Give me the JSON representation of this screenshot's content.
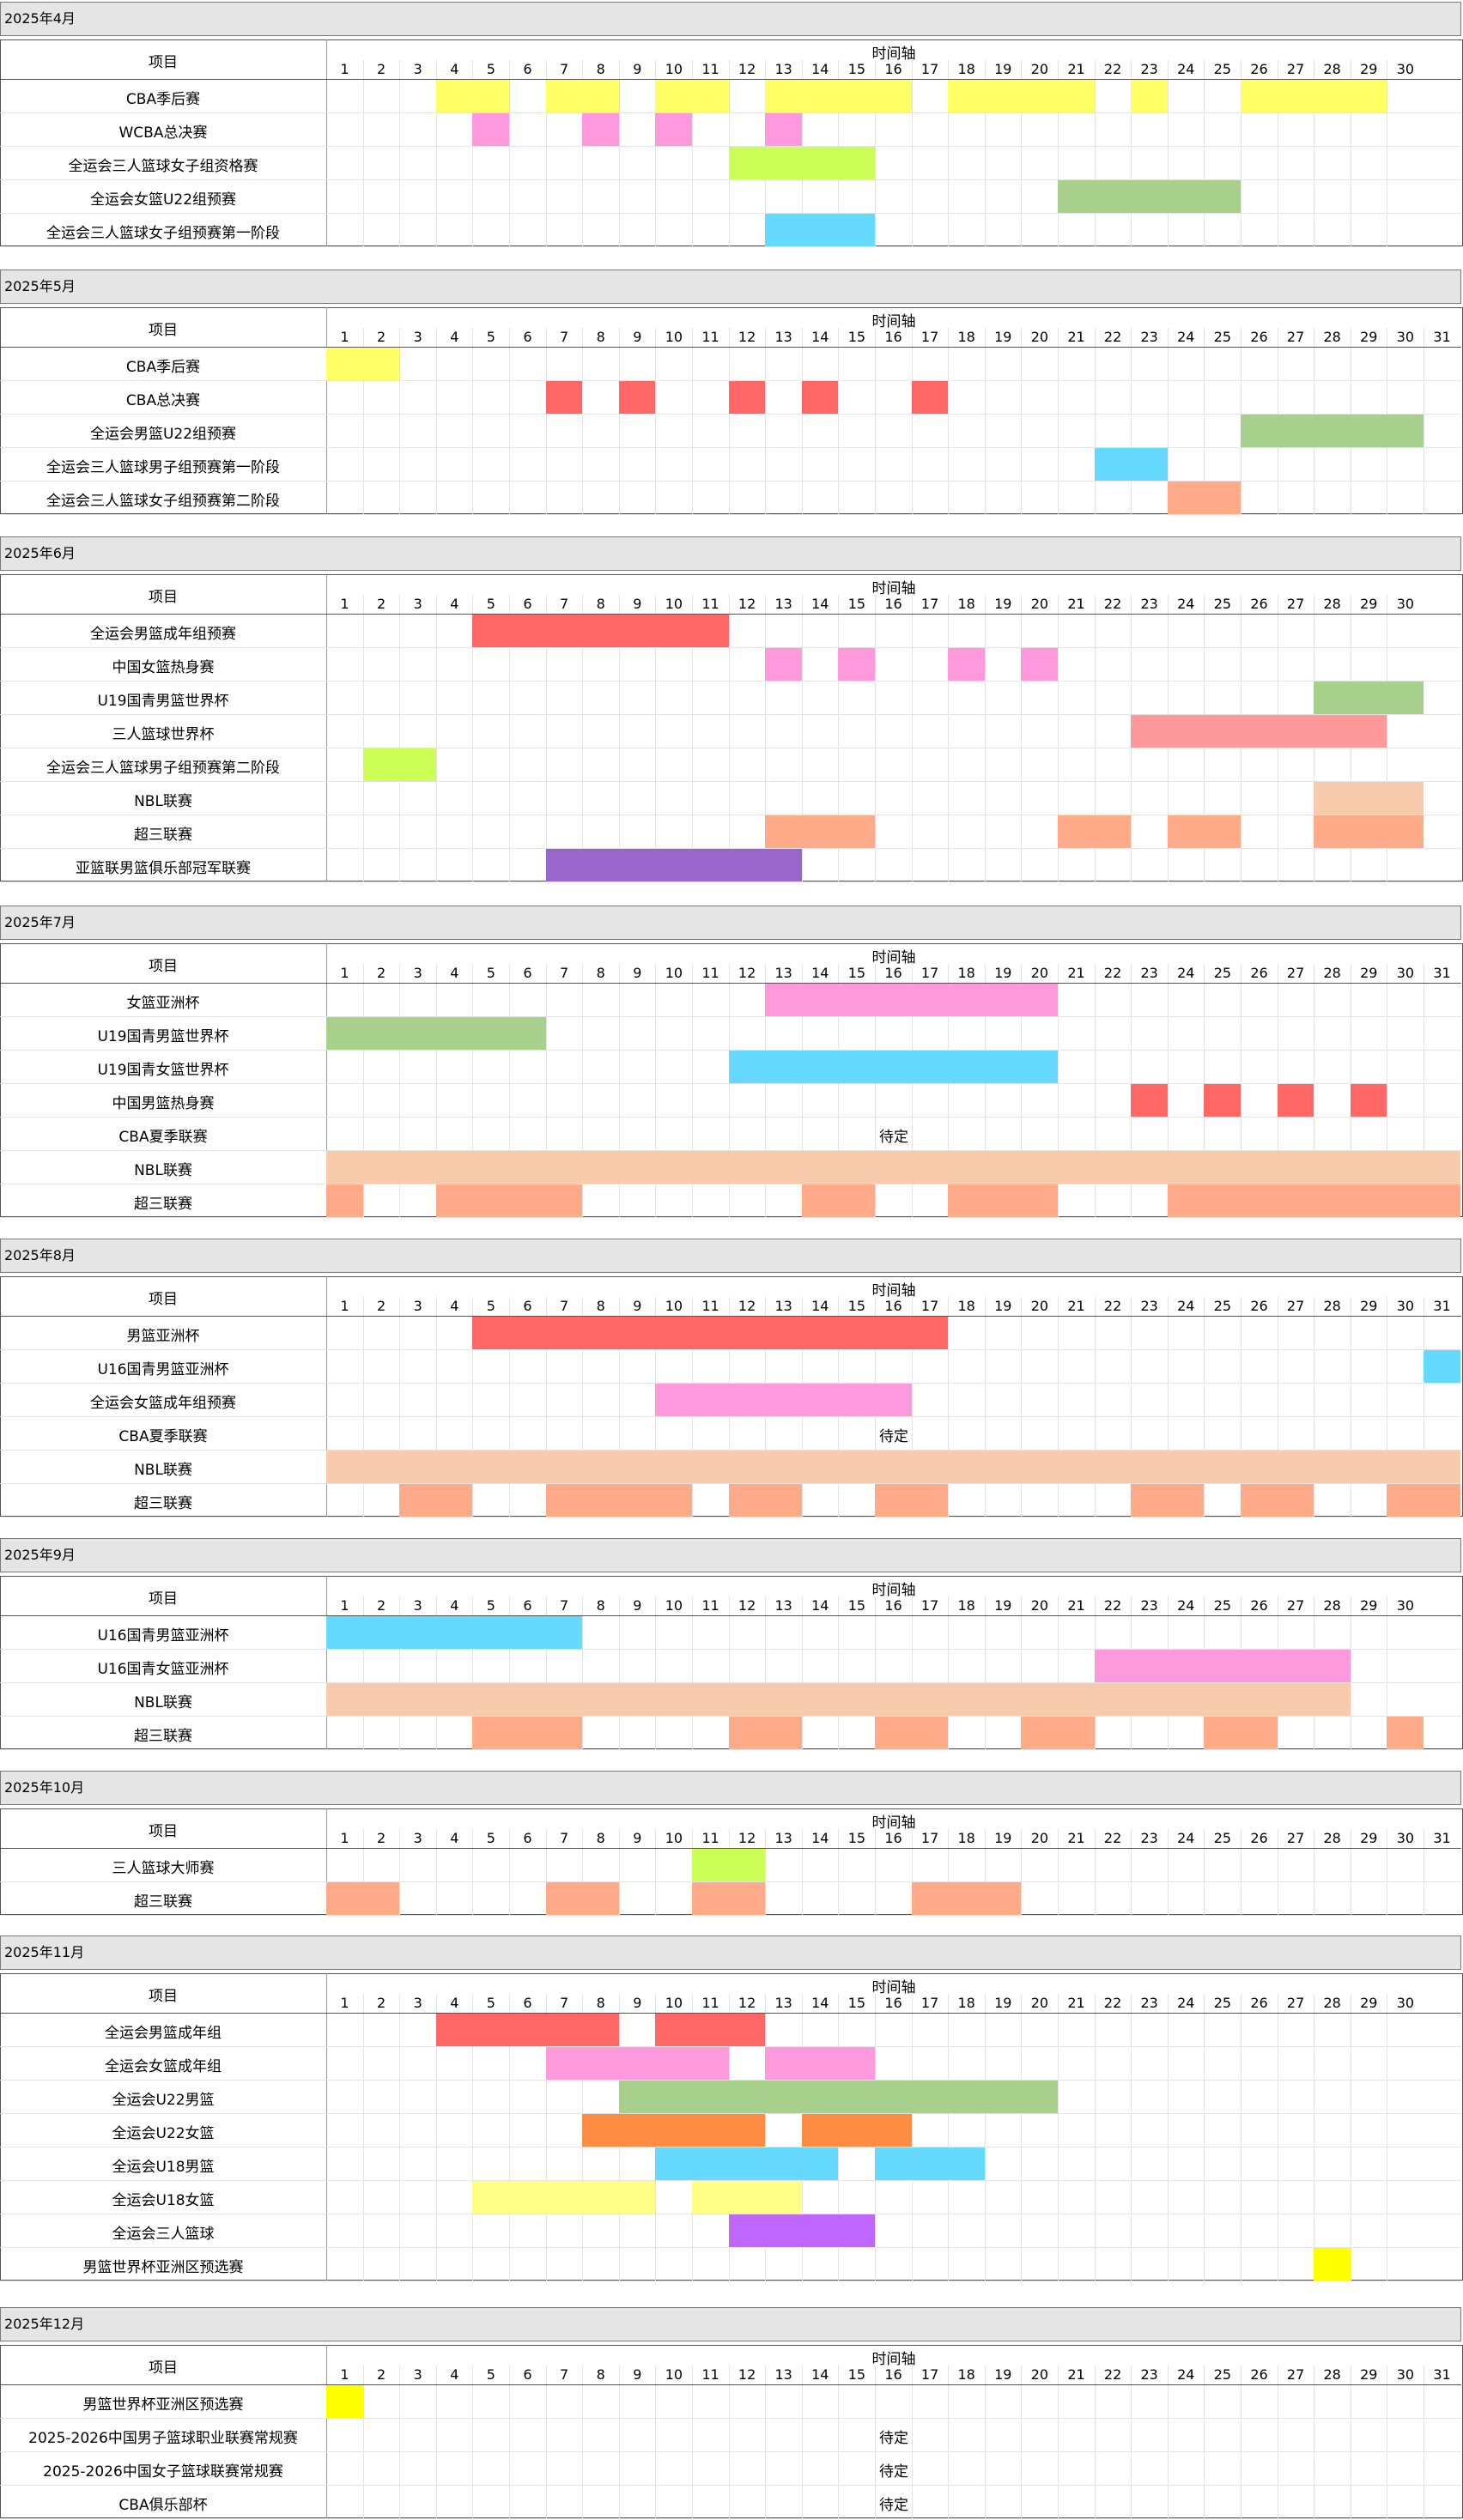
{
  "header": {
    "project_label": "项目",
    "axis_label": "时间轴"
  },
  "months": [
    {
      "title": "2025年4月",
      "days": 30,
      "rows": [
        {
          "label": "CBA季后赛",
          "bars": [
            {
              "s": 4,
              "e": 5,
              "c": "#ffff66"
            },
            {
              "s": 7,
              "e": 8,
              "c": "#ffff66"
            },
            {
              "s": 10,
              "e": 11,
              "c": "#ffff66"
            },
            {
              "s": 13,
              "e": 16,
              "c": "#ffff66"
            },
            {
              "s": 18,
              "e": 21,
              "c": "#ffff66"
            },
            {
              "s": 23,
              "e": 23,
              "c": "#ffff66"
            },
            {
              "s": 26,
              "e": 29,
              "c": "#ffff66"
            }
          ]
        },
        {
          "label": "WCBA总决赛",
          "bars": [
            {
              "s": 5,
              "e": 5,
              "c": "#ff99dd"
            },
            {
              "s": 8,
              "e": 8,
              "c": "#ff99dd"
            },
            {
              "s": 10,
              "e": 10,
              "c": "#ff99dd"
            },
            {
              "s": 13,
              "e": 13,
              "c": "#ff99dd"
            }
          ]
        },
        {
          "label": "全运会三人篮球女子组资格赛",
          "bars": [
            {
              "s": 12,
              "e": 15,
              "c": "#ccff55"
            }
          ]
        },
        {
          "label": "全运会女篮U22组预赛",
          "bars": [
            {
              "s": 21,
              "e": 25,
              "c": "#a8d08d"
            }
          ]
        },
        {
          "label": "全运会三人篮球女子组预赛第一阶段",
          "bars": [
            {
              "s": 13,
              "e": 15,
              "c": "#66d9ff"
            }
          ]
        }
      ]
    },
    {
      "title": "2025年5月",
      "days": 31,
      "rows": [
        {
          "label": "CBA季后赛",
          "bars": [
            {
              "s": 1,
              "e": 2,
              "c": "#ffff66"
            }
          ]
        },
        {
          "label": "CBA总决赛",
          "bars": [
            {
              "s": 7,
              "e": 7,
              "c": "#ff6666"
            },
            {
              "s": 9,
              "e": 9,
              "c": "#ff6666"
            },
            {
              "s": 12,
              "e": 12,
              "c": "#ff6666"
            },
            {
              "s": 14,
              "e": 14,
              "c": "#ff6666"
            },
            {
              "s": 17,
              "e": 17,
              "c": "#ff6666"
            }
          ]
        },
        {
          "label": "全运会男篮U22组预赛",
          "bars": [
            {
              "s": 26,
              "e": 30,
              "c": "#a8d08d"
            }
          ]
        },
        {
          "label": "全运会三人篮球男子组预赛第一阶段",
          "bars": [
            {
              "s": 22,
              "e": 23,
              "c": "#66d9ff"
            }
          ]
        },
        {
          "label": "全运会三人篮球女子组预赛第二阶段",
          "bars": [
            {
              "s": 24,
              "e": 25,
              "c": "#ffaa88"
            }
          ]
        }
      ]
    },
    {
      "title": "2025年6月",
      "days": 30,
      "rows": [
        {
          "label": "全运会男篮成年组预赛",
          "bars": [
            {
              "s": 5,
              "e": 11,
              "c": "#ff6666"
            }
          ]
        },
        {
          "label": "中国女篮热身赛",
          "bars": [
            {
              "s": 13,
              "e": 13,
              "c": "#ff99dd"
            },
            {
              "s": 15,
              "e": 15,
              "c": "#ff99dd"
            },
            {
              "s": 18,
              "e": 18,
              "c": "#ff99dd"
            },
            {
              "s": 20,
              "e": 20,
              "c": "#ff99dd"
            }
          ]
        },
        {
          "label": "U19国青男篮世界杯",
          "bars": [
            {
              "s": 28,
              "e": 30,
              "c": "#a8d08d"
            }
          ]
        },
        {
          "label": "三人篮球世界杯",
          "bars": [
            {
              "s": 23,
              "e": 29,
              "c": "#ff9999"
            }
          ]
        },
        {
          "label": "全运会三人篮球男子组预赛第二阶段",
          "bars": [
            {
              "s": 2,
              "e": 3,
              "c": "#ccff55"
            }
          ]
        },
        {
          "label": "NBL联赛",
          "bars": [
            {
              "s": 28,
              "e": 30,
              "c": "#f8cbad"
            }
          ]
        },
        {
          "label": "超三联赛",
          "bars": [
            {
              "s": 13,
              "e": 15,
              "c": "#ffaa88"
            },
            {
              "s": 21,
              "e": 22,
              "c": "#ffaa88"
            },
            {
              "s": 24,
              "e": 25,
              "c": "#ffaa88"
            },
            {
              "s": 28,
              "e": 30,
              "c": "#ffaa88"
            }
          ]
        },
        {
          "label": "亚篮联男篮俱乐部冠军联赛",
          "bars": [
            {
              "s": 7,
              "e": 13,
              "c": "#9966cc"
            }
          ]
        }
      ]
    },
    {
      "title": "2025年7月",
      "days": 31,
      "rows": [
        {
          "label": "女篮亚洲杯",
          "bars": [
            {
              "s": 13,
              "e": 20,
              "c": "#ff99dd"
            }
          ]
        },
        {
          "label": "U19国青男篮世界杯",
          "bars": [
            {
              "s": 1,
              "e": 6,
              "c": "#a8d08d"
            }
          ]
        },
        {
          "label": "U19国青女篮世界杯",
          "bars": [
            {
              "s": 12,
              "e": 20,
              "c": "#66d9ff"
            }
          ]
        },
        {
          "label": "中国男篮热身赛",
          "bars": [
            {
              "s": 23,
              "e": 23,
              "c": "#ff6666"
            },
            {
              "s": 25,
              "e": 25,
              "c": "#ff6666"
            },
            {
              "s": 27,
              "e": 27,
              "c": "#ff6666"
            },
            {
              "s": 29,
              "e": 29,
              "c": "#ff6666"
            }
          ]
        },
        {
          "label": "CBA夏季联赛",
          "pending": "待定",
          "bars": []
        },
        {
          "label": "NBL联赛",
          "bars": [
            {
              "s": 1,
              "e": 31,
              "c": "#f8cbad"
            }
          ]
        },
        {
          "label": "超三联赛",
          "bars": [
            {
              "s": 1,
              "e": 1,
              "c": "#ffaa88"
            },
            {
              "s": 4,
              "e": 7,
              "c": "#ffaa88"
            },
            {
              "s": 14,
              "e": 15,
              "c": "#ffaa88"
            },
            {
              "s": 18,
              "e": 20,
              "c": "#ffaa88"
            },
            {
              "s": 24,
              "e": 31,
              "c": "#ffaa88"
            }
          ]
        }
      ]
    },
    {
      "title": "2025年8月",
      "days": 31,
      "rows": [
        {
          "label": "男篮亚洲杯",
          "bars": [
            {
              "s": 5,
              "e": 17,
              "c": "#ff6666"
            }
          ]
        },
        {
          "label": "U16国青男篮亚洲杯",
          "bars": [
            {
              "s": 31,
              "e": 31,
              "c": "#66d9ff"
            }
          ]
        },
        {
          "label": "全运会女篮成年组预赛",
          "bars": [
            {
              "s": 10,
              "e": 16,
              "c": "#ff99dd"
            }
          ]
        },
        {
          "label": "CBA夏季联赛",
          "pending": "待定",
          "bars": []
        },
        {
          "label": "NBL联赛",
          "bars": [
            {
              "s": 1,
              "e": 31,
              "c": "#f8cbad"
            }
          ]
        },
        {
          "label": "超三联赛",
          "bars": [
            {
              "s": 3,
              "e": 4,
              "c": "#ffaa88"
            },
            {
              "s": 7,
              "e": 10,
              "c": "#ffaa88"
            },
            {
              "s": 12,
              "e": 13,
              "c": "#ffaa88"
            },
            {
              "s": 16,
              "e": 17,
              "c": "#ffaa88"
            },
            {
              "s": 23,
              "e": 24,
              "c": "#ffaa88"
            },
            {
              "s": 26,
              "e": 27,
              "c": "#ffaa88"
            },
            {
              "s": 30,
              "e": 31,
              "c": "#ffaa88"
            }
          ]
        }
      ]
    },
    {
      "title": "2025年9月",
      "days": 30,
      "rows": [
        {
          "label": "U16国青男篮亚洲杯",
          "bars": [
            {
              "s": 1,
              "e": 7,
              "c": "#66d9ff"
            }
          ]
        },
        {
          "label": "U16国青女篮亚洲杯",
          "bars": [
            {
              "s": 22,
              "e": 28,
              "c": "#ff99dd"
            }
          ]
        },
        {
          "label": "NBL联赛",
          "bars": [
            {
              "s": 1,
              "e": 28,
              "c": "#f8cbad"
            }
          ]
        },
        {
          "label": "超三联赛",
          "bars": [
            {
              "s": 5,
              "e": 7,
              "c": "#ffaa88"
            },
            {
              "s": 12,
              "e": 13,
              "c": "#ffaa88"
            },
            {
              "s": 16,
              "e": 17,
              "c": "#ffaa88"
            },
            {
              "s": 20,
              "e": 21,
              "c": "#ffaa88"
            },
            {
              "s": 25,
              "e": 26,
              "c": "#ffaa88"
            },
            {
              "s": 30,
              "e": 30,
              "c": "#ffaa88"
            }
          ]
        }
      ]
    },
    {
      "title": "2025年10月",
      "days": 31,
      "rows": [
        {
          "label": "三人篮球大师赛",
          "bars": [
            {
              "s": 11,
              "e": 12,
              "c": "#ccff55"
            }
          ]
        },
        {
          "label": "超三联赛",
          "bars": [
            {
              "s": 1,
              "e": 2,
              "c": "#ffaa88"
            },
            {
              "s": 7,
              "e": 8,
              "c": "#ffaa88"
            },
            {
              "s": 11,
              "e": 12,
              "c": "#ffaa88"
            },
            {
              "s": 17,
              "e": 19,
              "c": "#ffaa88"
            }
          ]
        }
      ]
    },
    {
      "title": "2025年11月",
      "days": 30,
      "rows": [
        {
          "label": "全运会男篮成年组",
          "bars": [
            {
              "s": 4,
              "e": 8,
              "c": "#ff6666"
            },
            {
              "s": 10,
              "e": 12,
              "c": "#ff6666"
            }
          ]
        },
        {
          "label": "全运会女篮成年组",
          "bars": [
            {
              "s": 7,
              "e": 11,
              "c": "#ff99dd"
            },
            {
              "s": 13,
              "e": 15,
              "c": "#ff99dd"
            }
          ]
        },
        {
          "label": "全运会U22男篮",
          "bars": [
            {
              "s": 9,
              "e": 20,
              "c": "#a8d08d"
            }
          ]
        },
        {
          "label": "全运会U22女篮",
          "bars": [
            {
              "s": 8,
              "e": 12,
              "c": "#ff8c42"
            },
            {
              "s": 14,
              "e": 16,
              "c": "#ff8c42"
            }
          ]
        },
        {
          "label": "全运会U18男篮",
          "bars": [
            {
              "s": 10,
              "e": 14,
              "c": "#66d9ff"
            },
            {
              "s": 16,
              "e": 18,
              "c": "#66d9ff"
            }
          ]
        },
        {
          "label": "全运会U18女篮",
          "bars": [
            {
              "s": 5,
              "e": 9,
              "c": "#ffff88"
            },
            {
              "s": 11,
              "e": 13,
              "c": "#ffff88"
            }
          ]
        },
        {
          "label": "全运会三人篮球",
          "bars": [
            {
              "s": 12,
              "e": 15,
              "c": "#bf66ff"
            }
          ]
        },
        {
          "label": "男篮世界杯亚洲区预选赛",
          "bars": [
            {
              "s": 28,
              "e": 28,
              "c": "#ffff00"
            }
          ]
        }
      ]
    },
    {
      "title": "2025年12月",
      "days": 31,
      "rows": [
        {
          "label": "男篮世界杯亚洲区预选赛",
          "bars": [
            {
              "s": 1,
              "e": 1,
              "c": "#ffff00"
            }
          ]
        },
        {
          "label": "2025-2026中国男子篮球职业联赛常规赛",
          "pending": "待定",
          "bars": []
        },
        {
          "label": "2025-2026中国女子篮球联赛常规赛",
          "pending": "待定",
          "bars": []
        },
        {
          "label": "CBA俱乐部杯",
          "pending": "待定",
          "bars": []
        }
      ]
    }
  ]
}
